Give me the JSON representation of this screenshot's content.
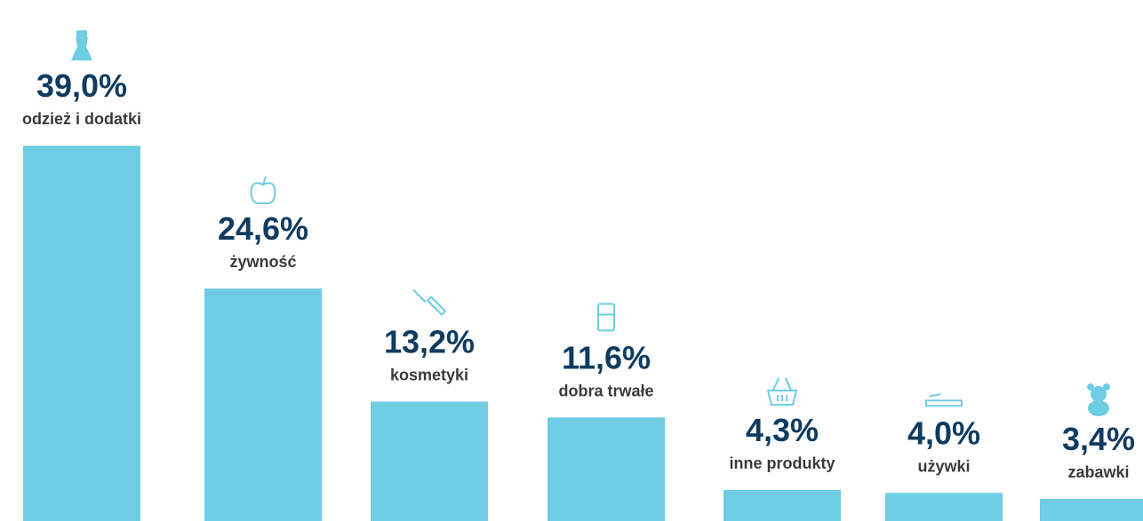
{
  "chart_data": {
    "type": "bar",
    "categories": [
      "odzież i dodatki",
      "żywność",
      "kosmetyki",
      "dobra trwałe",
      "inne produkty",
      "używki",
      "zabawki"
    ],
    "values": [
      39.0,
      24.6,
      13.2,
      11.6,
      4.3,
      4.0,
      3.4
    ],
    "value_labels": [
      "39,0%",
      "24,6%",
      "13,2%",
      "11,6%",
      "4,3%",
      "4,0%",
      "3,4%"
    ],
    "color": "#6ecde3",
    "ylim": [
      0,
      40
    ]
  }
}
